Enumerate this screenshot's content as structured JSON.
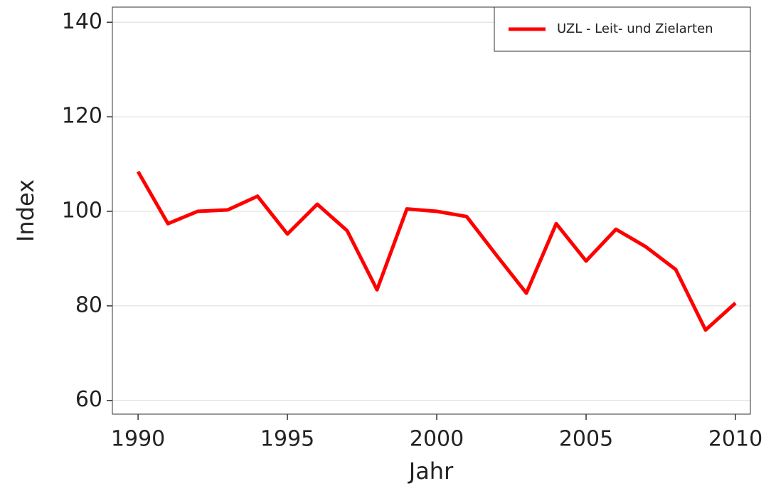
{
  "chart_data": {
    "type": "line",
    "x_label": "Jahr",
    "y_label": "Index",
    "x": [
      1990,
      1991,
      1992,
      1993,
      1994,
      1995,
      1996,
      1997,
      1998,
      1999,
      2000,
      2001,
      2002,
      2003,
      2004,
      2005,
      2006,
      2007,
      2008,
      2009,
      2010
    ],
    "series": [
      {
        "name": "UZL - Leit- und Zielarten",
        "color": "#ff0000",
        "values": [
          108.4,
          97.4,
          100,
          100.3,
          103.2,
          95.2,
          101.5,
          95.9,
          83.4,
          100.5,
          100,
          98.9,
          90.7,
          82.7,
          97.4,
          89.5,
          96.2,
          92.5,
          87.7,
          74.9,
          80.6
        ]
      }
    ],
    "xlim": [
      1989.14,
      2010.5
    ],
    "xticks": [
      1990,
      1995,
      2000,
      2005,
      2010
    ],
    "ylim": [
      57.1,
      143.2
    ],
    "yticks": [
      60,
      80,
      100,
      120,
      140
    ],
    "grid": true,
    "legend": "top-right"
  }
}
